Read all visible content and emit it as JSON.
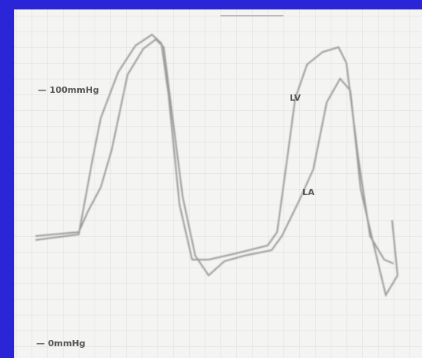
{
  "labels": {
    "scale_top": "— 100mmHg",
    "lv": "LV",
    "la": "LA",
    "scale_zero": "— 0mmHg"
  }
}
